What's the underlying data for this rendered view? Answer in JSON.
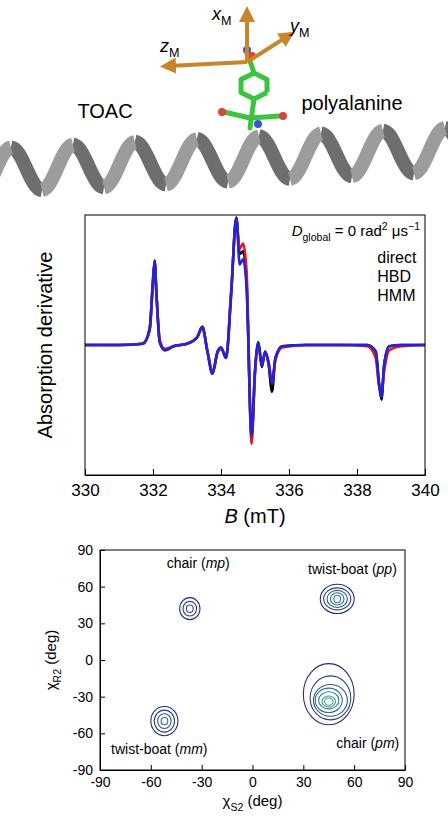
{
  "diagram": {
    "labels": [
      "TOAC",
      "polyalanine"
    ],
    "axes": [
      [
        {
          "text": "x",
          "italic": true
        },
        {
          "text": "M",
          "sub": true
        }
      ],
      [
        {
          "text": "y",
          "italic": true
        },
        {
          "text": "M",
          "sub": true
        }
      ],
      [
        {
          "text": "z",
          "italic": true
        },
        {
          "text": "M",
          "sub": true
        }
      ]
    ]
  },
  "chart_data": [
    {
      "type": "line",
      "x": [
        330,
        331,
        331.7,
        331.9,
        332.0,
        332.05,
        332.1,
        332.2,
        332.35,
        332.6,
        333.0,
        333.3,
        333.45,
        333.6,
        333.75,
        333.9,
        334.0,
        334.15,
        334.3,
        334.45,
        334.55,
        334.65,
        334.75,
        334.9,
        335.0,
        335.1,
        335.2,
        335.3,
        335.4,
        335.5,
        335.6,
        335.8,
        336.5,
        337.5,
        338.3,
        338.55,
        338.65,
        338.72,
        338.8,
        338.95,
        339.3,
        340
      ],
      "series": [
        {
          "name": "direct",
          "color": "#000000",
          "values": [
            0,
            0,
            0.01,
            0.12,
            0.5,
            0.65,
            0.4,
            0.02,
            -0.04,
            -0.01,
            0.01,
            0.06,
            0.14,
            -0.05,
            -0.22,
            -0.05,
            -0.02,
            -0.1,
            0.4,
            0.98,
            0.7,
            0.72,
            0.5,
            -0.7,
            -0.2,
            0.02,
            -0.17,
            -0.05,
            -0.15,
            -0.36,
            -0.1,
            -0.01,
            0,
            0,
            0,
            -0.05,
            -0.3,
            -0.42,
            -0.15,
            -0.01,
            0,
            0
          ]
        },
        {
          "name": "HBD",
          "color": "#e3191c",
          "values": [
            0,
            0,
            0.01,
            0.11,
            0.47,
            0.62,
            0.4,
            0.04,
            -0.03,
            -0.01,
            0.01,
            0.06,
            0.13,
            -0.04,
            -0.2,
            -0.06,
            -0.03,
            -0.08,
            0.42,
            0.96,
            0.74,
            0.78,
            0.58,
            -0.76,
            -0.22,
            0,
            -0.14,
            -0.06,
            -0.13,
            -0.28,
            -0.12,
            -0.02,
            0,
            0,
            -0.01,
            -0.1,
            -0.32,
            -0.36,
            -0.2,
            -0.04,
            -0.01,
            0
          ]
        },
        {
          "name": "HMM",
          "color": "#2323dc",
          "values": [
            0,
            0,
            0.01,
            0.12,
            0.5,
            0.64,
            0.4,
            0.02,
            -0.04,
            -0.01,
            0.01,
            0.06,
            0.14,
            -0.05,
            -0.22,
            -0.05,
            -0.02,
            -0.1,
            0.4,
            0.98,
            0.62,
            0.66,
            0.45,
            -0.7,
            -0.2,
            0.02,
            -0.16,
            -0.05,
            -0.14,
            -0.3,
            -0.1,
            -0.01,
            0,
            0,
            0,
            -0.05,
            -0.3,
            -0.4,
            -0.15,
            -0.01,
            0,
            0
          ]
        }
      ],
      "xlim": [
        330,
        340
      ],
      "ylim": [
        -1,
        1
      ],
      "xticks": [
        330,
        332,
        334,
        336,
        338,
        340
      ],
      "tick_labels": "x",
      "x_label": [
        {
          "text": "B",
          "italic": true
        },
        {
          "text": " (mT)"
        }
      ],
      "y_label": "Absorption derivative",
      "annotation": [
        {
          "text": "D",
          "italic": true
        },
        {
          "text": "global",
          "sub": true
        },
        {
          "text": " = 0 rad"
        },
        {
          "text": "2",
          "sup": true
        },
        {
          "text": " μs"
        },
        {
          "text": "−1",
          "sup": true
        }
      ],
      "legend": "right"
    },
    {
      "type": "contour",
      "xlim": [
        -90,
        90
      ],
      "ylim": [
        -90,
        90
      ],
      "xticks": [
        -90,
        -60,
        -30,
        0,
        30,
        60,
        90
      ],
      "yticks": [
        -90,
        -60,
        -30,
        0,
        30,
        60,
        90
      ],
      "x_label": [
        {
          "text": "χ"
        },
        {
          "text": "S2",
          "sub": true
        },
        {
          "text": " (deg)"
        }
      ],
      "y_label": [
        {
          "text": "χ"
        },
        {
          "text": "R2",
          "sub": true
        },
        {
          "text": " (deg)"
        }
      ],
      "contours": [
        {
          "label": [
            {
              "text": "chair ("
            },
            {
              "text": "mp",
              "italic": true
            },
            {
              "text": ")"
            }
          ],
          "label_x": -32,
          "label_y": 75,
          "rings": [
            {
              "x": -37,
              "y": 42,
              "rx": 6,
              "ry": 9
            },
            {
              "x": -37,
              "y": 42,
              "rx": 4,
              "ry": 6
            },
            {
              "x": -37,
              "y": 42,
              "rx": 2,
              "ry": 3
            }
          ]
        },
        {
          "label": [
            {
              "text": "twist-boat ("
            },
            {
              "text": "pp",
              "italic": true
            },
            {
              "text": ")"
            }
          ],
          "label_x": 59,
          "label_y": 70,
          "rings": [
            {
              "x": 50,
              "y": 50,
              "rx": 10,
              "ry": 12
            },
            {
              "x": 50,
              "y": 50,
              "rx": 8,
              "ry": 9
            },
            {
              "x": 50,
              "y": 50,
              "rx": 6,
              "ry": 7
            },
            {
              "x": 50,
              "y": 50,
              "rx": 4,
              "ry": 5
            },
            {
              "x": 50,
              "y": 50,
              "rx": 2,
              "ry": 3
            }
          ]
        },
        {
          "label": [
            {
              "text": "twist-boat ("
            },
            {
              "text": "mm",
              "italic": true
            },
            {
              "text": ")"
            }
          ],
          "label_x": -55,
          "label_y": -77,
          "rings": [
            {
              "x": -52,
              "y": -50,
              "rx": 8,
              "ry": 12
            },
            {
              "x": -52,
              "y": -50,
              "rx": 6,
              "ry": 9
            },
            {
              "x": -52,
              "y": -50,
              "rx": 4,
              "ry": 6
            },
            {
              "x": -52,
              "y": -50,
              "rx": 2,
              "ry": 3
            }
          ]
        },
        {
          "label": [
            {
              "text": "chair ("
            },
            {
              "text": "pm",
              "italic": true
            },
            {
              "text": ")"
            }
          ],
          "label_x": 68,
          "label_y": -72,
          "rings": [
            {
              "x": 45,
              "y": -28,
              "rx": 15,
              "ry": 25
            },
            {
              "x": 46,
              "y": -31,
              "rx": 12,
              "ry": 18
            },
            {
              "x": 46,
              "y": -33,
              "rx": 10,
              "ry": 13
            },
            {
              "x": 45,
              "y": -33,
              "rx": 8,
              "ry": 10
            },
            {
              "x": 45,
              "y": -33,
              "rx": 6,
              "ry": 7
            },
            {
              "x": 45,
              "y": -34,
              "rx": 4,
              "ry": 4.5
            },
            {
              "x": 45,
              "y": -34,
              "rx": 2.5,
              "ry": 3
            }
          ]
        }
      ]
    }
  ]
}
